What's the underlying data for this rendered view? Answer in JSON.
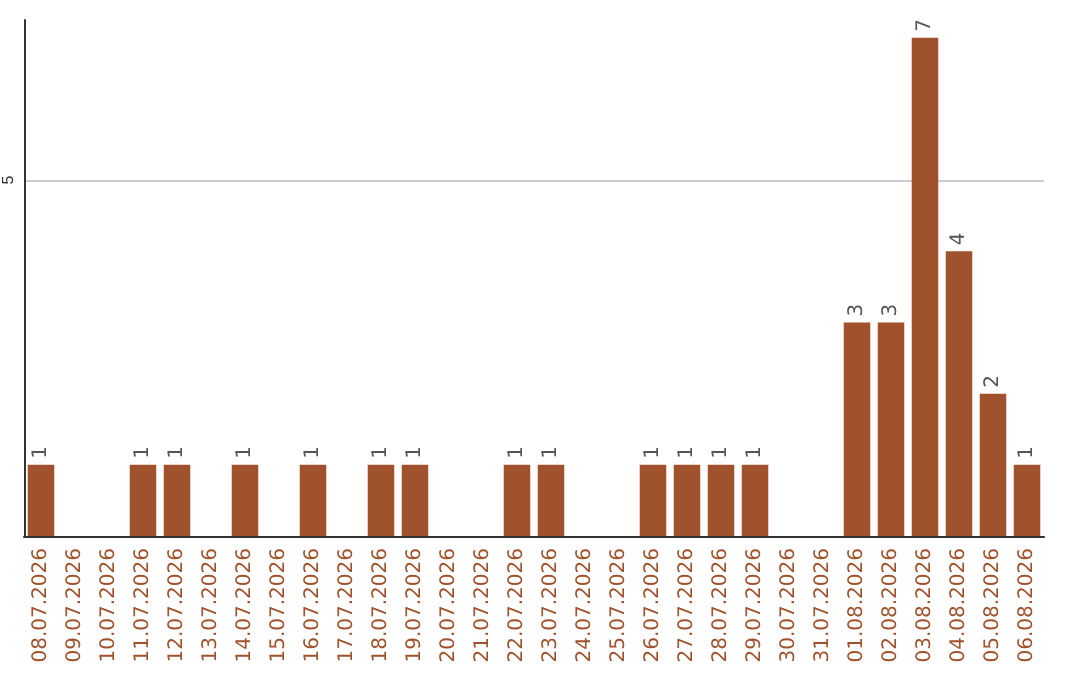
{
  "chart_data": {
    "type": "bar",
    "categories": [
      "08.07.2026",
      "09.07.2026",
      "10.07.2026",
      "11.07.2026",
      "12.07.2026",
      "13.07.2026",
      "14.07.2026",
      "15.07.2026",
      "16.07.2026",
      "17.07.2026",
      "18.07.2026",
      "19.07.2026",
      "20.07.2026",
      "21.07.2026",
      "22.07.2026",
      "23.07.2026",
      "24.07.2026",
      "25.07.2026",
      "26.07.2026",
      "27.07.2026",
      "28.07.2026",
      "29.07.2026",
      "30.07.2026",
      "31.07.2026",
      "01.08.2026",
      "02.08.2026",
      "03.08.2026",
      "04.08.2026",
      "05.08.2026",
      "06.08.2026"
    ],
    "values": [
      1,
      0,
      0,
      1,
      1,
      0,
      1,
      0,
      1,
      0,
      1,
      1,
      0,
      0,
      1,
      1,
      0,
      0,
      1,
      1,
      1,
      1,
      0,
      0,
      3,
      3,
      7,
      4,
      2,
      1
    ],
    "value_labels": [
      "1",
      null,
      null,
      "1",
      "1",
      null,
      "1",
      null,
      "1",
      null,
      "1",
      "1",
      null,
      null,
      "1",
      "1",
      null,
      null,
      "1",
      "1",
      "1",
      "1",
      null,
      null,
      "3",
      "3",
      "7",
      "4",
      "2",
      "1"
    ],
    "color": "#a0522d",
    "ylim": [
      0,
      7.25
    ],
    "yticks": [
      5
    ],
    "grid": "y"
  }
}
